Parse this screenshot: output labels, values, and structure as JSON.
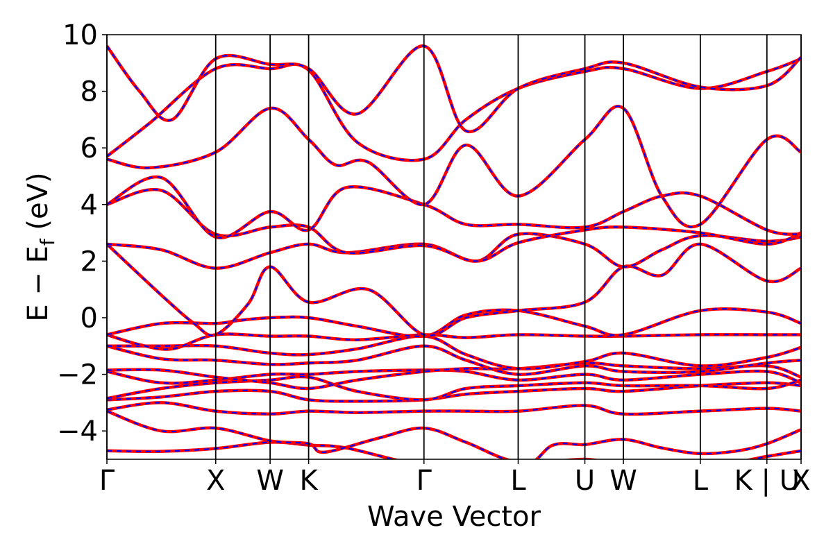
{
  "chart_data": {
    "type": "line",
    "title": "",
    "xlabel": "Wave Vector",
    "ylabel_parts": {
      "main": "E − E",
      "sub": "f",
      "tail": " (eV)"
    },
    "ylim": [
      -5,
      10
    ],
    "xlim": [
      0,
      6.38
    ],
    "grid": false,
    "legend": "none",
    "yticks": [
      -4,
      -2,
      0,
      2,
      4,
      6,
      8,
      10
    ],
    "ytick_labels": [
      "−4",
      "−2",
      "0",
      "2",
      "4",
      "6",
      "8",
      "10"
    ],
    "kpoints": [
      {
        "label": "Γ",
        "x": 0.0
      },
      {
        "label": "X",
        "x": 1.0
      },
      {
        "label": "W",
        "x": 1.5
      },
      {
        "label": "K",
        "x": 1.854
      },
      {
        "label": "Γ",
        "x": 2.914
      },
      {
        "label": "L",
        "x": 3.78
      },
      {
        "label": "U",
        "x": 4.393
      },
      {
        "label": "W",
        "x": 4.747
      },
      {
        "label": "L",
        "x": 5.454
      },
      {
        "label": "K | U",
        "x": 6.066
      },
      {
        "label": "X",
        "x": 6.38
      }
    ],
    "line_colors": {
      "red": "#ff0000",
      "blue": "#0000ff",
      "frame": "#000000"
    },
    "bands": [
      [
        [
          0,
          -4.7
        ],
        [
          0.5,
          -4.72
        ],
        [
          1.0,
          -4.62
        ],
        [
          1.5,
          -4.4
        ],
        [
          1.854,
          -4.5
        ],
        [
          2.2,
          -4.6
        ],
        [
          2.914,
          -5.2
        ],
        [
          3.78,
          -5.3
        ],
        [
          4.1,
          -4.5
        ],
        [
          4.393,
          -4.48
        ],
        [
          4.747,
          -4.3
        ],
        [
          5.1,
          -4.6
        ],
        [
          5.454,
          -4.8
        ],
        [
          5.8,
          -4.7
        ],
        [
          6.066,
          -4.45
        ],
        [
          6.38,
          -3.95
        ]
      ],
      [
        [
          0,
          -3.3
        ],
        [
          0.5,
          -4.0
        ],
        [
          1.0,
          -3.9
        ],
        [
          1.5,
          -4.35
        ],
        [
          1.854,
          -4.45
        ],
        [
          2.0,
          -4.75
        ],
        [
          2.5,
          -4.25
        ],
        [
          2.914,
          -3.9
        ],
        [
          3.3,
          -4.4
        ],
        [
          3.78,
          -5.1
        ],
        [
          4.393,
          -5.0
        ],
        [
          4.747,
          -5.2
        ],
        [
          5.454,
          -5.3
        ],
        [
          6.066,
          -4.9
        ],
        [
          6.38,
          -4.7
        ]
      ],
      [
        [
          0,
          -3.25
        ],
        [
          0.5,
          -3.0
        ],
        [
          1.0,
          -3.3
        ],
        [
          1.5,
          -3.4
        ],
        [
          1.854,
          -3.3
        ],
        [
          2.3,
          -3.35
        ],
        [
          2.914,
          -3.3
        ],
        [
          3.3,
          -3.3
        ],
        [
          3.78,
          -3.3
        ],
        [
          4.393,
          -3.1
        ],
        [
          4.747,
          -3.4
        ],
        [
          5.454,
          -3.3
        ],
        [
          6.066,
          -3.2
        ],
        [
          6.38,
          -3.3
        ]
      ],
      [
        [
          0,
          -2.9
        ],
        [
          0.5,
          -2.8
        ],
        [
          1.0,
          -2.6
        ],
        [
          1.5,
          -2.6
        ],
        [
          1.854,
          -2.9
        ],
        [
          2.3,
          -2.95
        ],
        [
          2.914,
          -2.9
        ],
        [
          3.3,
          -2.7
        ],
        [
          3.78,
          -2.6
        ],
        [
          4.393,
          -2.5
        ],
        [
          4.747,
          -2.6
        ],
        [
          5.454,
          -2.4
        ],
        [
          6.066,
          -2.3
        ],
        [
          6.38,
          -2.4
        ]
      ],
      [
        [
          0,
          -2.85
        ],
        [
          0.5,
          -2.5
        ],
        [
          1.0,
          -2.3
        ],
        [
          1.5,
          -2.2
        ],
        [
          1.854,
          -2.1
        ],
        [
          2.3,
          -2.6
        ],
        [
          2.914,
          -2.9
        ],
        [
          3.3,
          -2.5
        ],
        [
          3.78,
          -2.4
        ],
        [
          4.393,
          -2.3
        ],
        [
          4.747,
          -2.4
        ],
        [
          5.454,
          -2.4
        ],
        [
          6.066,
          -2.5
        ],
        [
          6.38,
          -2.2
        ]
      ],
      [
        [
          0,
          -1.9
        ],
        [
          0.5,
          -2.3
        ],
        [
          1.0,
          -2.2
        ],
        [
          1.5,
          -2.0
        ],
        [
          1.854,
          -2.0
        ],
        [
          2.3,
          -1.9
        ],
        [
          2.914,
          -1.85
        ],
        [
          3.3,
          -1.9
        ],
        [
          3.78,
          -2.2
        ],
        [
          4.393,
          -2.0
        ],
        [
          4.747,
          -2.2
        ],
        [
          5.454,
          -2.0
        ],
        [
          6.066,
          -1.9
        ],
        [
          6.38,
          -2.3
        ]
      ],
      [
        [
          0,
          -1.85
        ],
        [
          0.5,
          -1.85
        ],
        [
          1.0,
          -2.1
        ],
        [
          1.5,
          -2.3
        ],
        [
          1.854,
          -2.5
        ],
        [
          2.3,
          -2.2
        ],
        [
          2.914,
          -1.9
        ],
        [
          3.3,
          -1.8
        ],
        [
          3.78,
          -1.8
        ],
        [
          4.393,
          -1.6
        ],
        [
          4.747,
          -1.7
        ],
        [
          5.454,
          -1.8
        ],
        [
          6.066,
          -1.7
        ],
        [
          6.38,
          -2.1
        ]
      ],
      [
        [
          0,
          -1.0
        ],
        [
          0.5,
          -1.45
        ],
        [
          1.0,
          -1.5
        ],
        [
          1.5,
          -1.65
        ],
        [
          1.854,
          -1.6
        ],
        [
          2.3,
          -1.5
        ],
        [
          2.914,
          -1.0
        ],
        [
          3.3,
          -1.5
        ],
        [
          3.78,
          -2.0
        ],
        [
          4.393,
          -1.7
        ],
        [
          4.747,
          -1.9
        ],
        [
          5.454,
          -1.9
        ],
        [
          6.066,
          -1.6
        ],
        [
          6.38,
          -1.5
        ]
      ],
      [
        [
          0,
          -1.0
        ],
        [
          0.5,
          -1.0
        ],
        [
          1.0,
          -1.0
        ],
        [
          1.5,
          -1.25
        ],
        [
          1.854,
          -1.3
        ],
        [
          2.3,
          -1.1
        ],
        [
          2.914,
          -0.65
        ],
        [
          3.3,
          -1.3
        ],
        [
          3.78,
          -1.8
        ],
        [
          4.393,
          -1.55
        ],
        [
          4.747,
          -1.25
        ],
        [
          5.454,
          -1.7
        ],
        [
          6.066,
          -1.4
        ],
        [
          6.38,
          -1.05
        ]
      ],
      [
        [
          0,
          -0.6
        ],
        [
          0.3,
          -0.95
        ],
        [
          0.6,
          -1.1
        ],
        [
          1.0,
          -0.6
        ],
        [
          1.5,
          -0.65
        ],
        [
          1.854,
          -0.65
        ],
        [
          2.3,
          -0.78
        ],
        [
          2.914,
          -0.6
        ],
        [
          3.3,
          -0.7
        ],
        [
          3.78,
          -0.6
        ],
        [
          4.393,
          -0.65
        ],
        [
          4.747,
          -0.65
        ],
        [
          5.454,
          -0.6
        ],
        [
          6.066,
          -0.6
        ],
        [
          6.38,
          -0.6
        ]
      ],
      [
        [
          0,
          -0.6
        ],
        [
          0.5,
          -0.2
        ],
        [
          1.0,
          -0.2
        ],
        [
          1.2,
          -0.1
        ],
        [
          1.5,
          0.0
        ],
        [
          1.854,
          0.0
        ],
        [
          2.3,
          -0.3
        ],
        [
          2.914,
          -0.65
        ],
        [
          3.3,
          0.1
        ],
        [
          3.78,
          0.25
        ],
        [
          4.393,
          -0.3
        ],
        [
          4.747,
          -0.6
        ],
        [
          5.454,
          0.25
        ],
        [
          6.066,
          0.2
        ],
        [
          6.38,
          -0.2
        ]
      ],
      [
        [
          0,
          2.6
        ],
        [
          0.5,
          0.8
        ],
        [
          0.8,
          -0.2
        ],
        [
          1.0,
          -0.6
        ],
        [
          1.3,
          0.5
        ],
        [
          1.5,
          1.8
        ],
        [
          1.854,
          0.55
        ],
        [
          2.4,
          1.0
        ],
        [
          2.914,
          -0.6
        ],
        [
          3.3,
          0.0
        ],
        [
          3.78,
          0.25
        ],
        [
          4.393,
          0.55
        ],
        [
          4.747,
          1.8
        ],
        [
          5.1,
          1.5
        ],
        [
          5.454,
          2.6
        ],
        [
          6.066,
          1.3
        ],
        [
          6.38,
          1.75
        ]
      ],
      [
        [
          0,
          2.6
        ],
        [
          0.5,
          2.4
        ],
        [
          1.0,
          1.75
        ],
        [
          1.5,
          2.3
        ],
        [
          1.854,
          2.6
        ],
        [
          2.2,
          2.3
        ],
        [
          2.914,
          2.6
        ],
        [
          3.4,
          2.0
        ],
        [
          3.78,
          2.95
        ],
        [
          4.393,
          2.6
        ],
        [
          4.747,
          1.8
        ],
        [
          5.1,
          2.4
        ],
        [
          5.454,
          2.9
        ],
        [
          6.066,
          2.7
        ],
        [
          6.38,
          2.85
        ]
      ],
      [
        [
          0,
          4.0
        ],
        [
          0.5,
          4.5
        ],
        [
          1.0,
          2.95
        ],
        [
          1.5,
          3.2
        ],
        [
          1.854,
          3.2
        ],
        [
          2.2,
          2.3
        ],
        [
          2.914,
          2.55
        ],
        [
          3.4,
          2.0
        ],
        [
          3.78,
          2.65
        ],
        [
          4.393,
          3.1
        ],
        [
          4.747,
          3.2
        ],
        [
          5.454,
          3.0
        ],
        [
          6.066,
          2.6
        ],
        [
          6.38,
          3.0
        ]
      ],
      [
        [
          0,
          4.0
        ],
        [
          0.5,
          4.95
        ],
        [
          1.0,
          2.85
        ],
        [
          1.5,
          3.75
        ],
        [
          1.854,
          3.1
        ],
        [
          2.2,
          4.6
        ],
        [
          2.914,
          4.0
        ],
        [
          3.3,
          3.3
        ],
        [
          3.78,
          3.3
        ],
        [
          4.393,
          3.2
        ],
        [
          4.747,
          3.75
        ],
        [
          5.1,
          4.3
        ],
        [
          5.454,
          4.3
        ],
        [
          6.066,
          3.1
        ],
        [
          6.38,
          2.95
        ]
      ],
      [
        [
          0,
          5.6
        ],
        [
          0.4,
          5.3
        ],
        [
          1.0,
          5.85
        ],
        [
          1.5,
          7.4
        ],
        [
          1.854,
          6.3
        ],
        [
          2.1,
          5.4
        ],
        [
          2.4,
          5.5
        ],
        [
          2.914,
          4.0
        ],
        [
          3.3,
          6.1
        ],
        [
          3.78,
          4.3
        ],
        [
          4.393,
          6.3
        ],
        [
          4.747,
          7.4
        ],
        [
          5.1,
          4.3
        ],
        [
          5.454,
          3.3
        ],
        [
          6.066,
          6.3
        ],
        [
          6.38,
          5.85
        ]
      ],
      [
        [
          0,
          5.7
        ],
        [
          0.4,
          6.9
        ],
        [
          1.0,
          8.8
        ],
        [
          1.5,
          8.8
        ],
        [
          1.854,
          8.75
        ],
        [
          2.3,
          6.2
        ],
        [
          2.914,
          5.6
        ],
        [
          3.3,
          7.0
        ],
        [
          3.78,
          8.1
        ],
        [
          4.393,
          8.7
        ],
        [
          4.747,
          8.8
        ],
        [
          5.454,
          8.1
        ],
        [
          6.066,
          8.7
        ],
        [
          6.38,
          9.15
        ]
      ],
      [
        [
          0,
          9.6
        ],
        [
          0.3,
          8.0
        ],
        [
          0.6,
          7.0
        ],
        [
          1.0,
          9.15
        ],
        [
          1.5,
          8.95
        ],
        [
          1.854,
          8.8
        ],
        [
          2.3,
          7.2
        ],
        [
          2.914,
          9.6
        ],
        [
          3.3,
          6.6
        ],
        [
          3.78,
          8.1
        ],
        [
          4.393,
          8.8
        ],
        [
          4.747,
          9.0
        ],
        [
          5.454,
          8.15
        ],
        [
          6.066,
          8.2
        ],
        [
          6.38,
          9.2
        ]
      ]
    ]
  }
}
